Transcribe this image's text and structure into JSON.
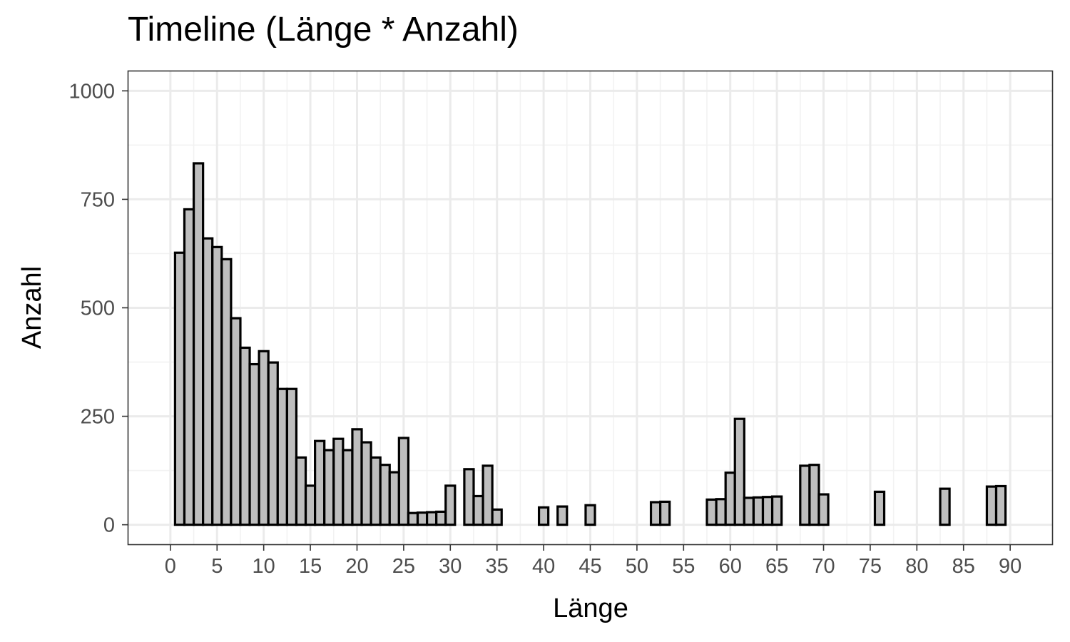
{
  "chart_data": {
    "type": "bar",
    "title": "Timeline (Länge * Anzahl)",
    "xlabel": "Länge",
    "ylabel": "Anzahl",
    "xlim": [
      -4.5,
      94.5
    ],
    "ylim": [
      -45,
      1045
    ],
    "xticks": [
      0,
      5,
      10,
      15,
      20,
      25,
      30,
      35,
      40,
      45,
      50,
      55,
      60,
      65,
      70,
      75,
      80,
      85,
      90
    ],
    "yticks": [
      0,
      250,
      500,
      750,
      1000
    ],
    "grid": true,
    "x": [
      1,
      2,
      3,
      4,
      5,
      6,
      7,
      8,
      9,
      10,
      11,
      12,
      13,
      14,
      15,
      16,
      17,
      18,
      19,
      20,
      21,
      22,
      23,
      24,
      25,
      26,
      27,
      28,
      29,
      30,
      32,
      33,
      34,
      35,
      40,
      42,
      45,
      52,
      53,
      58,
      59,
      60,
      61,
      62,
      63,
      64,
      65,
      68,
      69,
      70,
      76,
      83,
      88,
      89
    ],
    "values": [
      627,
      727,
      833,
      660,
      640,
      612,
      476,
      408,
      370,
      400,
      374,
      313,
      313,
      155,
      90,
      193,
      172,
      198,
      172,
      220,
      190,
      155,
      138,
      121,
      200,
      27,
      28,
      29,
      30,
      90,
      128,
      66,
      136,
      35,
      40,
      42,
      45,
      52,
      53,
      58,
      59,
      120,
      244,
      62,
      63,
      64,
      65,
      136,
      138,
      70,
      76,
      83,
      88,
      89
    ]
  }
}
